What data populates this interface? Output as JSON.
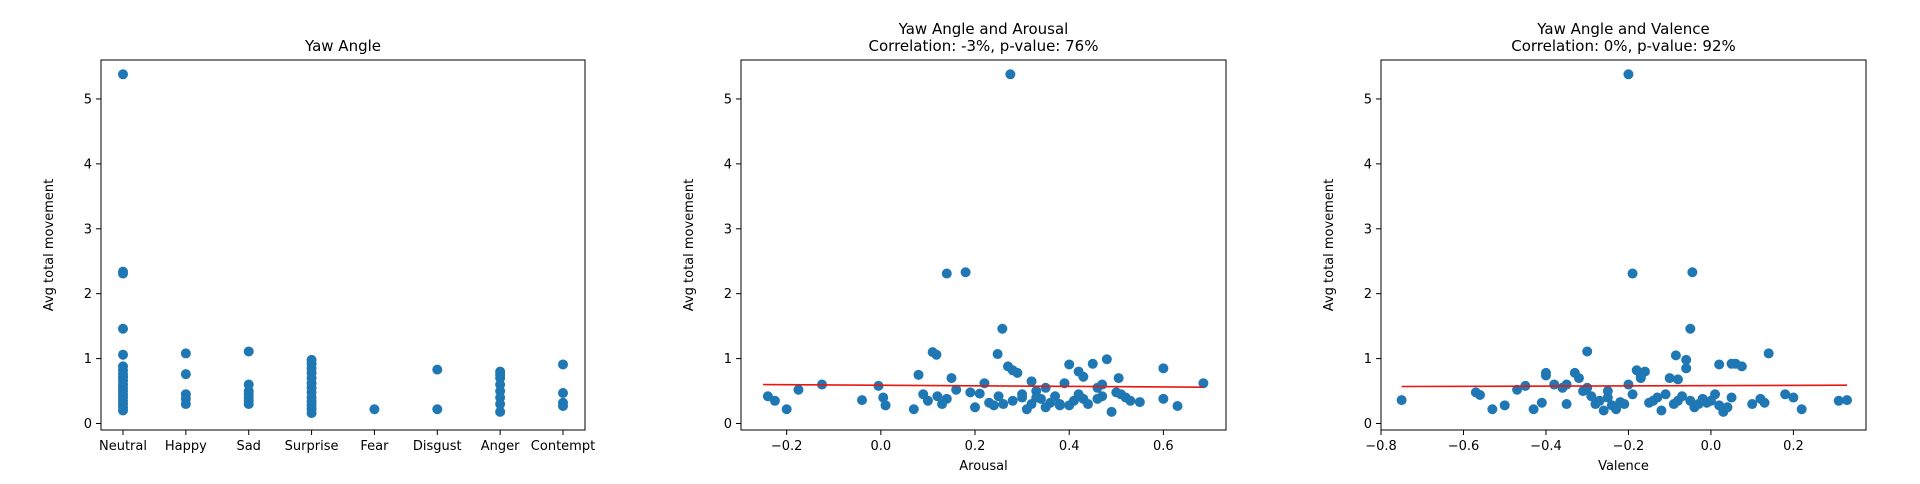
{
  "chart_data": [
    {
      "type": "scatter",
      "title": "Yaw Angle",
      "subtitle": "",
      "xlabel": "",
      "ylabel": "Avg total movement",
      "categories": [
        "Neutral",
        "Happy",
        "Sad",
        "Surprise",
        "Fear",
        "Disgust",
        "Anger",
        "Contempt"
      ],
      "xlim": [
        -0.35,
        7.35
      ],
      "ylim": [
        -0.1,
        5.6
      ],
      "yticks": [
        0,
        1,
        2,
        3,
        4,
        5
      ],
      "yticklabels": [
        "0",
        "1",
        "2",
        "3",
        "4",
        "5"
      ],
      "color": "#1f77b4",
      "points": [
        [
          "Neutral",
          5.38
        ],
        [
          "Neutral",
          2.34
        ],
        [
          "Neutral",
          2.31
        ],
        [
          "Neutral",
          1.46
        ],
        [
          "Neutral",
          1.06
        ],
        [
          "Neutral",
          0.88
        ],
        [
          "Neutral",
          0.82
        ],
        [
          "Neutral",
          0.76
        ],
        [
          "Neutral",
          0.71
        ],
        [
          "Neutral",
          0.66
        ],
        [
          "Neutral",
          0.6
        ],
        [
          "Neutral",
          0.55
        ],
        [
          "Neutral",
          0.5
        ],
        [
          "Neutral",
          0.45
        ],
        [
          "Neutral",
          0.4
        ],
        [
          "Neutral",
          0.35
        ],
        [
          "Neutral",
          0.3
        ],
        [
          "Neutral",
          0.25
        ],
        [
          "Neutral",
          0.2
        ],
        [
          "Happy",
          1.08
        ],
        [
          "Happy",
          0.76
        ],
        [
          "Happy",
          0.45
        ],
        [
          "Happy",
          0.38
        ],
        [
          "Happy",
          0.3
        ],
        [
          "Sad",
          1.11
        ],
        [
          "Sad",
          0.6
        ],
        [
          "Sad",
          0.5
        ],
        [
          "Sad",
          0.45
        ],
        [
          "Sad",
          0.4
        ],
        [
          "Sad",
          0.35
        ],
        [
          "Sad",
          0.3
        ],
        [
          "Surprise",
          0.98
        ],
        [
          "Surprise",
          0.92
        ],
        [
          "Surprise",
          0.85
        ],
        [
          "Surprise",
          0.78
        ],
        [
          "Surprise",
          0.7
        ],
        [
          "Surprise",
          0.62
        ],
        [
          "Surprise",
          0.55
        ],
        [
          "Surprise",
          0.48
        ],
        [
          "Surprise",
          0.4
        ],
        [
          "Surprise",
          0.34
        ],
        [
          "Surprise",
          0.28
        ],
        [
          "Surprise",
          0.22
        ],
        [
          "Surprise",
          0.16
        ],
        [
          "Fear",
          0.22
        ],
        [
          "Disgust",
          0.83
        ],
        [
          "Disgust",
          0.22
        ],
        [
          "Anger",
          0.8
        ],
        [
          "Anger",
          0.75
        ],
        [
          "Anger",
          0.7
        ],
        [
          "Anger",
          0.6
        ],
        [
          "Anger",
          0.5
        ],
        [
          "Anger",
          0.4
        ],
        [
          "Anger",
          0.3
        ],
        [
          "Anger",
          0.18
        ],
        [
          "Contempt",
          0.91
        ],
        [
          "Contempt",
          0.47
        ],
        [
          "Contempt",
          0.32
        ],
        [
          "Contempt",
          0.27
        ]
      ]
    },
    {
      "type": "scatter",
      "title": "Yaw Angle and Arousal",
      "subtitle": "Correlation: -3%, p-value: 76%",
      "xlabel": "Arousal",
      "ylabel": "Avg total movement",
      "xlim": [
        -0.297,
        0.733
      ],
      "ylim": [
        -0.1,
        5.6
      ],
      "xticks": [
        -0.2,
        0.0,
        0.2,
        0.4,
        0.6
      ],
      "xticklabels": [
        "−0.2",
        "0.0",
        "0.2",
        "0.4",
        "0.6"
      ],
      "yticks": [
        0,
        1,
        2,
        3,
        4,
        5
      ],
      "yticklabels": [
        "0",
        "1",
        "2",
        "3",
        "4",
        "5"
      ],
      "color": "#1f77b4",
      "fit_color": "#e8170f",
      "fit_line": [
        [
          -0.25,
          0.6
        ],
        [
          0.685,
          0.56
        ]
      ],
      "x": [
        0.275,
        0.14,
        0.18,
        0.258,
        0.11,
        0.118,
        0.248,
        0.27,
        0.29,
        0.48,
        0.45,
        0.4,
        0.42,
        0.505,
        0.6,
        0.685,
        -0.125,
        -0.175,
        -0.24,
        -0.225,
        -0.2,
        -0.04,
        -0.005,
        0.005,
        0.01,
        0.07,
        0.09,
        0.1,
        0.12,
        0.13,
        0.15,
        0.16,
        0.19,
        0.2,
        0.22,
        0.23,
        0.24,
        0.25,
        0.26,
        0.28,
        0.3,
        0.31,
        0.32,
        0.33,
        0.34,
        0.35,
        0.36,
        0.37,
        0.38,
        0.39,
        0.4,
        0.41,
        0.42,
        0.43,
        0.44,
        0.46,
        0.47,
        0.49,
        0.5,
        0.51,
        0.52,
        0.53,
        0.55,
        0.6,
        0.63,
        0.08,
        0.28,
        0.32,
        0.35,
        0.43,
        0.47,
        0.14,
        0.21,
        0.3,
        0.38,
        0.33,
        0.46
      ],
      "y": [
        5.38,
        2.31,
        2.33,
        1.46,
        1.1,
        1.06,
        1.07,
        0.88,
        0.78,
        0.99,
        0.92,
        0.91,
        0.8,
        0.7,
        0.85,
        0.62,
        0.6,
        0.52,
        0.42,
        0.35,
        0.22,
        0.36,
        0.58,
        0.4,
        0.28,
        0.22,
        0.45,
        0.35,
        0.42,
        0.3,
        0.7,
        0.52,
        0.48,
        0.25,
        0.62,
        0.32,
        0.28,
        0.42,
        0.3,
        0.35,
        0.45,
        0.22,
        0.3,
        0.5,
        0.38,
        0.25,
        0.32,
        0.42,
        0.3,
        0.62,
        0.28,
        0.35,
        0.45,
        0.38,
        0.3,
        0.55,
        0.6,
        0.18,
        0.48,
        0.45,
        0.4,
        0.35,
        0.33,
        0.38,
        0.27,
        0.75,
        0.82,
        0.65,
        0.55,
        0.72,
        0.42,
        0.38,
        0.46,
        0.4,
        0.28,
        0.4,
        0.38
      ]
    },
    {
      "type": "scatter",
      "title": "Yaw Angle and Valence",
      "subtitle": "Correlation: 0%, p-value: 92%",
      "xlabel": "Valence",
      "ylabel": "Avg total movement",
      "xlim": [
        -0.8,
        0.376
      ],
      "ylim": [
        -0.1,
        5.6
      ],
      "xticks": [
        -0.8,
        -0.6,
        -0.4,
        -0.2,
        0.0,
        0.2
      ],
      "xticklabels": [
        "−0.8",
        "−0.6",
        "−0.4",
        "−0.2",
        "0.0",
        "0.2"
      ],
      "yticks": [
        0,
        1,
        2,
        3,
        4,
        5
      ],
      "yticklabels": [
        "0",
        "1",
        "2",
        "3",
        "4",
        "5"
      ],
      "color": "#1f77b4",
      "fit_color": "#e8170f",
      "fit_line": [
        [
          -0.75,
          0.57
        ],
        [
          0.33,
          0.59
        ]
      ],
      "x": [
        -0.2,
        -0.19,
        -0.045,
        -0.05,
        0.14,
        -0.3,
        -0.085,
        -0.06,
        0.05,
        0.075,
        0.02,
        -0.75,
        -0.57,
        -0.56,
        -0.53,
        -0.5,
        -0.47,
        -0.45,
        -0.43,
        -0.41,
        -0.4,
        -0.38,
        -0.36,
        -0.35,
        -0.33,
        -0.32,
        -0.31,
        -0.3,
        -0.29,
        -0.28,
        -0.27,
        -0.26,
        -0.25,
        -0.24,
        -0.23,
        -0.22,
        -0.21,
        -0.2,
        -0.19,
        -0.18,
        -0.17,
        -0.16,
        -0.15,
        -0.14,
        -0.13,
        -0.12,
        -0.11,
        -0.1,
        -0.09,
        -0.08,
        -0.07,
        -0.06,
        -0.05,
        -0.04,
        -0.03,
        -0.02,
        -0.01,
        0.0,
        0.01,
        0.02,
        0.03,
        0.04,
        0.05,
        0.06,
        0.1,
        0.12,
        0.13,
        0.18,
        0.2,
        0.22,
        0.31,
        0.33,
        -0.4,
        -0.35,
        -0.25,
        -0.17,
        -0.08
      ],
      "y": [
        5.38,
        2.31,
        2.33,
        1.46,
        1.08,
        1.11,
        1.05,
        0.98,
        0.92,
        0.88,
        0.91,
        0.36,
        0.48,
        0.44,
        0.22,
        0.28,
        0.52,
        0.58,
        0.22,
        0.32,
        0.74,
        0.6,
        0.55,
        0.3,
        0.78,
        0.7,
        0.5,
        0.55,
        0.42,
        0.3,
        0.35,
        0.2,
        0.4,
        0.28,
        0.22,
        0.33,
        0.3,
        0.6,
        0.45,
        0.82,
        0.7,
        0.8,
        0.32,
        0.35,
        0.4,
        0.2,
        0.45,
        0.7,
        0.3,
        0.35,
        0.42,
        0.85,
        0.35,
        0.25,
        0.3,
        0.38,
        0.32,
        0.35,
        0.45,
        0.28,
        0.18,
        0.25,
        0.4,
        0.92,
        0.3,
        0.38,
        0.32,
        0.45,
        0.4,
        0.22,
        0.35,
        0.36,
        0.78,
        0.6,
        0.5,
        0.72,
        0.68
      ]
    }
  ]
}
